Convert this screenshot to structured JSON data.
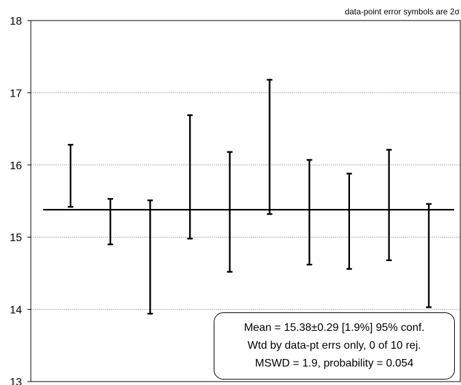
{
  "chart_data": {
    "type": "errorbar",
    "title": "",
    "xlabel": "",
    "ylabel": "",
    "ylim": [
      13,
      18
    ],
    "y_ticks": [
      13,
      14,
      15,
      16,
      17,
      18
    ],
    "grid": "horizontal",
    "note": "data-point error symbols are 2σ",
    "mean_line": 15.38,
    "points": [
      {
        "index": 1,
        "low": 15.42,
        "high": 16.28
      },
      {
        "index": 2,
        "low": 14.9,
        "high": 15.53
      },
      {
        "index": 3,
        "low": 13.94,
        "high": 15.51
      },
      {
        "index": 4,
        "low": 14.98,
        "high": 16.69
      },
      {
        "index": 5,
        "low": 14.52,
        "high": 16.18
      },
      {
        "index": 6,
        "low": 15.32,
        "high": 17.18
      },
      {
        "index": 7,
        "low": 14.62,
        "high": 16.07
      },
      {
        "index": 8,
        "low": 14.56,
        "high": 15.88
      },
      {
        "index": 9,
        "low": 14.68,
        "high": 16.21
      },
      {
        "index": 10,
        "low": 14.03,
        "high": 15.46
      }
    ],
    "stats": {
      "line1": "Mean = 15.38±0.29  [1.9%]  95% conf.",
      "line2": "Wtd by data-pt errs only, 0 of 10 rej.",
      "line3": "MSWD = 1.9, probability = 0.054"
    }
  }
}
